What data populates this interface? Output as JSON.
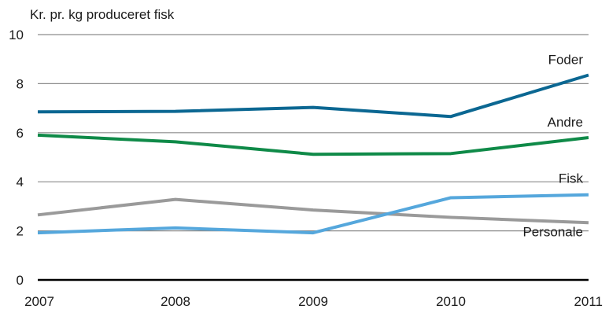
{
  "chart_data": {
    "type": "line",
    "ylabel": "Kr. pr. kg produceret fisk",
    "ylim": [
      0,
      10
    ],
    "yticks": [
      "0",
      "2",
      "4",
      "6",
      "8",
      "10"
    ],
    "categories": [
      "2007",
      "2008",
      "2009",
      "2010",
      "2011"
    ],
    "grid": true,
    "series": [
      {
        "name": "Foder",
        "color": "#0b6792",
        "values": [
          6.85,
          6.87,
          7.03,
          6.66,
          8.35
        ]
      },
      {
        "name": "Andre",
        "color": "#0f8a48",
        "values": [
          5.9,
          5.63,
          5.12,
          5.15,
          5.8
        ]
      },
      {
        "name": "Fisk",
        "color": "#9a9a9a",
        "values": [
          2.65,
          3.28,
          2.85,
          2.55,
          2.33
        ]
      },
      {
        "name": "Personale",
        "color": "#55a7dc",
        "values": [
          1.92,
          2.12,
          1.92,
          3.35,
          3.47
        ]
      }
    ]
  }
}
